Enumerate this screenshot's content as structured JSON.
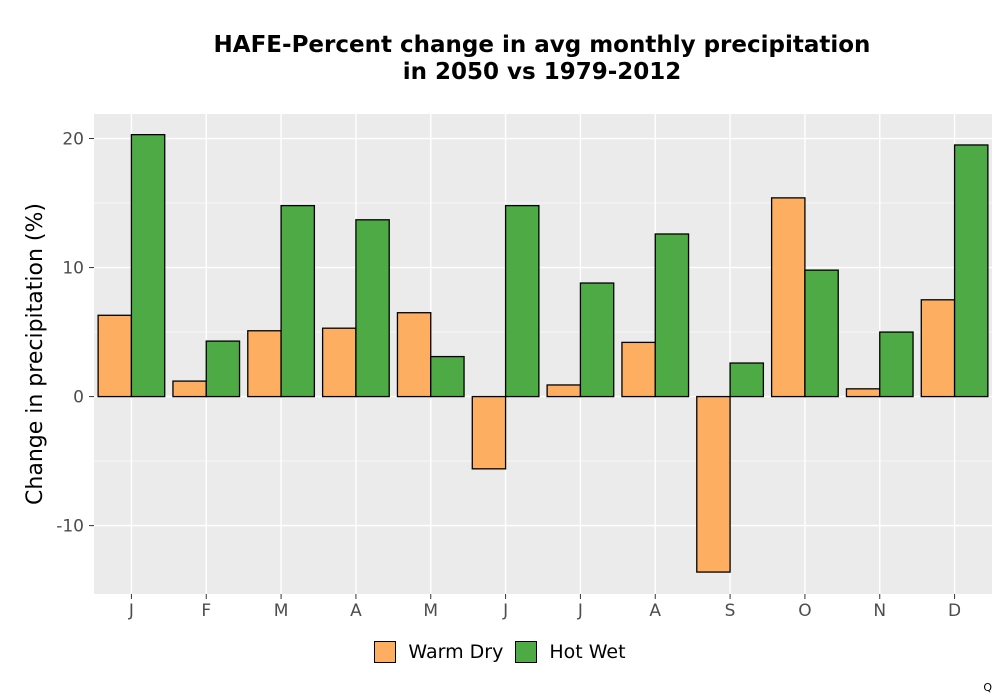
{
  "chart_data": {
    "type": "bar",
    "title": [
      "HAFE-Percent change in avg monthly precipitation",
      "in 2050 vs 1979-2012"
    ],
    "xlabel": "",
    "ylabel": "Change in precipitation (%)",
    "categories": [
      "J",
      "F",
      "M",
      "A",
      "M",
      "J",
      "J",
      "A",
      "S",
      "O",
      "N",
      "D"
    ],
    "series": [
      {
        "name": "Warm Dry",
        "color": "#FDAE61",
        "values": [
          6.3,
          1.2,
          5.1,
          5.3,
          6.5,
          -5.6,
          0.9,
          4.2,
          -13.6,
          15.4,
          0.6,
          7.5
        ]
      },
      {
        "name": "Hot Wet",
        "color": "#4DAA44",
        "values": [
          20.3,
          4.3,
          14.8,
          13.7,
          3.1,
          14.8,
          8.8,
          12.6,
          2.6,
          9.8,
          5.0,
          19.5
        ]
      }
    ],
    "yticks": [
      -10,
      0,
      10,
      20
    ],
    "ylim": [
      -15.3,
      21.9
    ],
    "grid": true,
    "legend_position": "bottom",
    "corner_mark": "Q"
  }
}
